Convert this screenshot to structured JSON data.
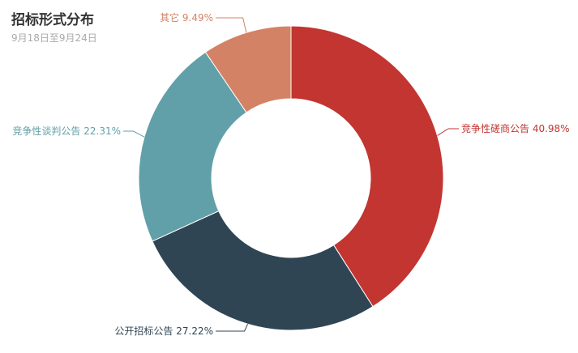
{
  "chart_data": {
    "type": "pie",
    "variant": "donut",
    "title": "招标形式分布",
    "subtitle": "9月18日至9月24日",
    "slices": [
      {
        "name": "竞争性磋商公告",
        "percent_label": "40.98%",
        "value": 40.98,
        "color": "#c23531"
      },
      {
        "name": "公开招标公告",
        "percent_label": "27.22%",
        "value": 27.22,
        "color": "#2f4554"
      },
      {
        "name": "竞争性谈判公告",
        "percent_label": "22.31%",
        "value": 22.31,
        "color": "#61a0a8"
      },
      {
        "name": "其它",
        "percent_label": "9.49%",
        "value": 9.49,
        "color": "#d48265"
      }
    ]
  }
}
